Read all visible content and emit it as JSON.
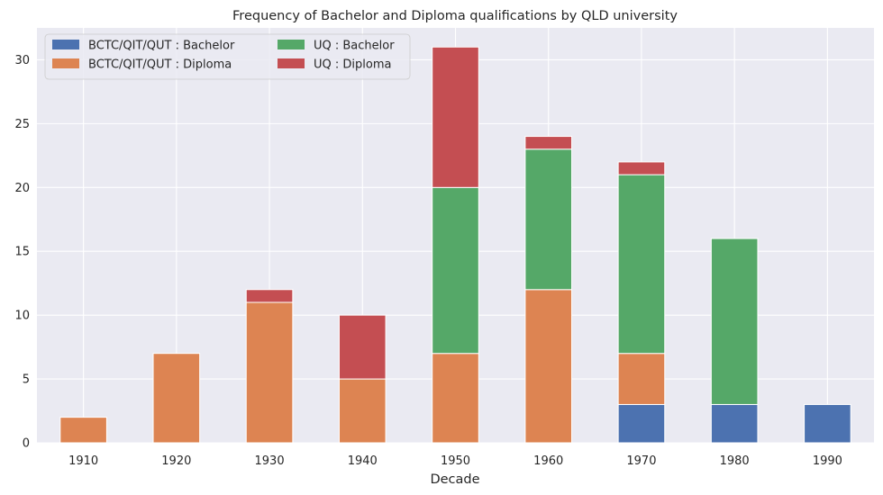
{
  "chart_data": {
    "type": "bar",
    "stacked": true,
    "title": "Frequency of Bachelor and Diploma qualifications by QLD university",
    "xlabel": "Decade",
    "ylabel": "",
    "categories": [
      "1910",
      "1920",
      "1930",
      "1940",
      "1950",
      "1960",
      "1970",
      "1980",
      "1990"
    ],
    "ylim": [
      0,
      32.5
    ],
    "yticks": [
      0,
      5,
      10,
      15,
      20,
      25,
      30
    ],
    "grid": true,
    "legend_position": "top-left",
    "series": [
      {
        "name": "BCTC/QIT/QUT : Bachelor",
        "color": "#4c72b0",
        "values": [
          0,
          0,
          0,
          0,
          0,
          0,
          3,
          3,
          3
        ]
      },
      {
        "name": "BCTC/QIT/QUT : Diploma",
        "color": "#dd8452",
        "values": [
          2,
          7,
          11,
          5,
          7,
          12,
          4,
          0,
          0
        ]
      },
      {
        "name": "UQ : Bachelor",
        "color": "#55a868",
        "values": [
          0,
          0,
          0,
          0,
          13,
          11,
          14,
          13,
          0
        ]
      },
      {
        "name": "UQ : Diploma",
        "color": "#c44e52",
        "values": [
          0,
          0,
          1,
          5,
          11,
          1,
          1,
          0,
          0
        ]
      }
    ]
  }
}
